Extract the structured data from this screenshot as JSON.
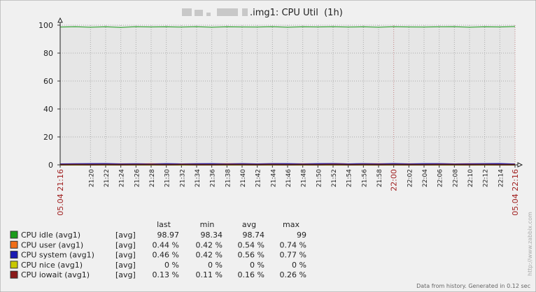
{
  "chart_data": {
    "type": "line",
    "title": ".img1: CPU Util  (1h)",
    "x": [
      1276,
      1278,
      1280,
      1282,
      1284,
      1286,
      1288,
      1290,
      1292,
      1294,
      1296,
      1298,
      1300,
      1302,
      1304,
      1306,
      1308,
      1310,
      1312,
      1314,
      1316,
      1318,
      1320,
      1322,
      1324,
      1326,
      1328,
      1330,
      1332,
      1334,
      1336
    ],
    "xlim": [
      1276,
      1336
    ],
    "xticks": [
      {
        "value": 1276,
        "label": "05.04 21:16",
        "color": "#a02020"
      },
      {
        "value": 1280,
        "label": "21:20"
      },
      {
        "value": 1282,
        "label": "21:22"
      },
      {
        "value": 1284,
        "label": "21:24"
      },
      {
        "value": 1286,
        "label": "21:26"
      },
      {
        "value": 1288,
        "label": "21:28"
      },
      {
        "value": 1290,
        "label": "21:30"
      },
      {
        "value": 1292,
        "label": "21:32"
      },
      {
        "value": 1294,
        "label": "21:34"
      },
      {
        "value": 1296,
        "label": "21:36"
      },
      {
        "value": 1298,
        "label": "21:38"
      },
      {
        "value": 1300,
        "label": "21:40"
      },
      {
        "value": 1302,
        "label": "21:42"
      },
      {
        "value": 1304,
        "label": "21:44"
      },
      {
        "value": 1306,
        "label": "21:46"
      },
      {
        "value": 1308,
        "label": "21:48"
      },
      {
        "value": 1310,
        "label": "21:50"
      },
      {
        "value": 1312,
        "label": "21:52"
      },
      {
        "value": 1314,
        "label": "21:54"
      },
      {
        "value": 1316,
        "label": "21:56"
      },
      {
        "value": 1318,
        "label": "21:58"
      },
      {
        "value": 1320,
        "label": "22:00",
        "color": "#a02020"
      },
      {
        "value": 1322,
        "label": "22:02"
      },
      {
        "value": 1324,
        "label": "22:04"
      },
      {
        "value": 1326,
        "label": "22:06"
      },
      {
        "value": 1328,
        "label": "22:08"
      },
      {
        "value": 1330,
        "label": "22:10"
      },
      {
        "value": 1332,
        "label": "22:12"
      },
      {
        "value": 1334,
        "label": "22:14"
      },
      {
        "value": 1336,
        "label": "05.04 22:16",
        "color": "#a02020"
      }
    ],
    "ylim": [
      0,
      100
    ],
    "yticks": [
      0,
      20,
      40,
      60,
      80,
      100
    ],
    "grid": true,
    "stat_columns": [
      "last",
      "min",
      "avg",
      "max"
    ],
    "series": [
      {
        "name": "CPU idle (avg1)",
        "func": "[avg]",
        "color": "#1a9c1a",
        "values": [
          98.6,
          98.9,
          98.5,
          98.8,
          98.4,
          98.9,
          98.7,
          98.8,
          98.6,
          98.9,
          98.5,
          98.8,
          98.7,
          98.6,
          98.9,
          98.5,
          98.8,
          98.7,
          98.9,
          98.6,
          98.8,
          98.5,
          98.9,
          98.7,
          98.6,
          98.8,
          98.9,
          98.5,
          98.8,
          98.7,
          98.97
        ],
        "stats": [
          "98.97",
          "98.34",
          "98.74",
          "99"
        ]
      },
      {
        "name": "CPU user (avg1)",
        "func": "[avg]",
        "color": "#f06d17",
        "values": [
          0.5,
          0.45,
          0.6,
          0.5,
          0.55,
          0.48,
          0.6,
          0.52,
          0.5,
          0.58,
          0.47,
          0.6,
          0.55,
          0.5,
          0.62,
          0.5,
          0.56,
          0.52,
          0.74,
          0.5,
          0.55,
          0.6,
          0.48,
          0.56,
          0.5,
          0.58,
          0.52,
          0.6,
          0.5,
          0.55,
          0.44
        ],
        "stats": [
          "0.44 %",
          "0.42 %",
          "0.54 %",
          "0.74 %"
        ]
      },
      {
        "name": "CPU system (avg1)",
        "func": "[avg]",
        "color": "#1a1ab3",
        "values": [
          0.5,
          0.6,
          0.7,
          0.72,
          0.5,
          0.62,
          0.45,
          0.7,
          0.5,
          0.65,
          0.7,
          0.48,
          0.7,
          0.5,
          0.66,
          0.7,
          0.52,
          0.7,
          0.77,
          0.5,
          0.7,
          0.48,
          0.72,
          0.5,
          0.68,
          0.7,
          0.5,
          0.55,
          0.7,
          0.72,
          0.46
        ],
        "stats": [
          "0.46 %",
          "0.42 %",
          "0.56 %",
          "0.77 %"
        ]
      },
      {
        "name": "CPU nice (avg1)",
        "func": "[avg]",
        "color": "#c8c800",
        "values": [
          0,
          0,
          0,
          0,
          0,
          0,
          0,
          0,
          0,
          0,
          0,
          0,
          0,
          0,
          0,
          0,
          0,
          0,
          0,
          0,
          0,
          0,
          0,
          0,
          0,
          0,
          0,
          0,
          0,
          0,
          0
        ],
        "stats": [
          "0 %",
          "0 %",
          "0 %",
          "0 %"
        ]
      },
      {
        "name": "CPU iowait (avg1)",
        "func": "[avg]",
        "color": "#8b1a1a",
        "values": [
          0.15,
          0.2,
          0.12,
          0.18,
          0.14,
          0.2,
          0.16,
          0.13,
          0.22,
          0.15,
          0.11,
          0.18,
          0.16,
          0.14,
          0.2,
          0.15,
          0.17,
          0.13,
          0.26,
          0.15,
          0.16,
          0.14,
          0.19,
          0.15,
          0.13,
          0.18,
          0.16,
          0.14,
          0.17,
          0.15,
          0.13
        ],
        "stats": [
          "0.13 %",
          "0.11 %",
          "0.16 %",
          "0.26 %"
        ]
      }
    ],
    "footer": "Data from history. Generated in 0.12 sec",
    "watermark": "http://www.zabbix.com"
  }
}
